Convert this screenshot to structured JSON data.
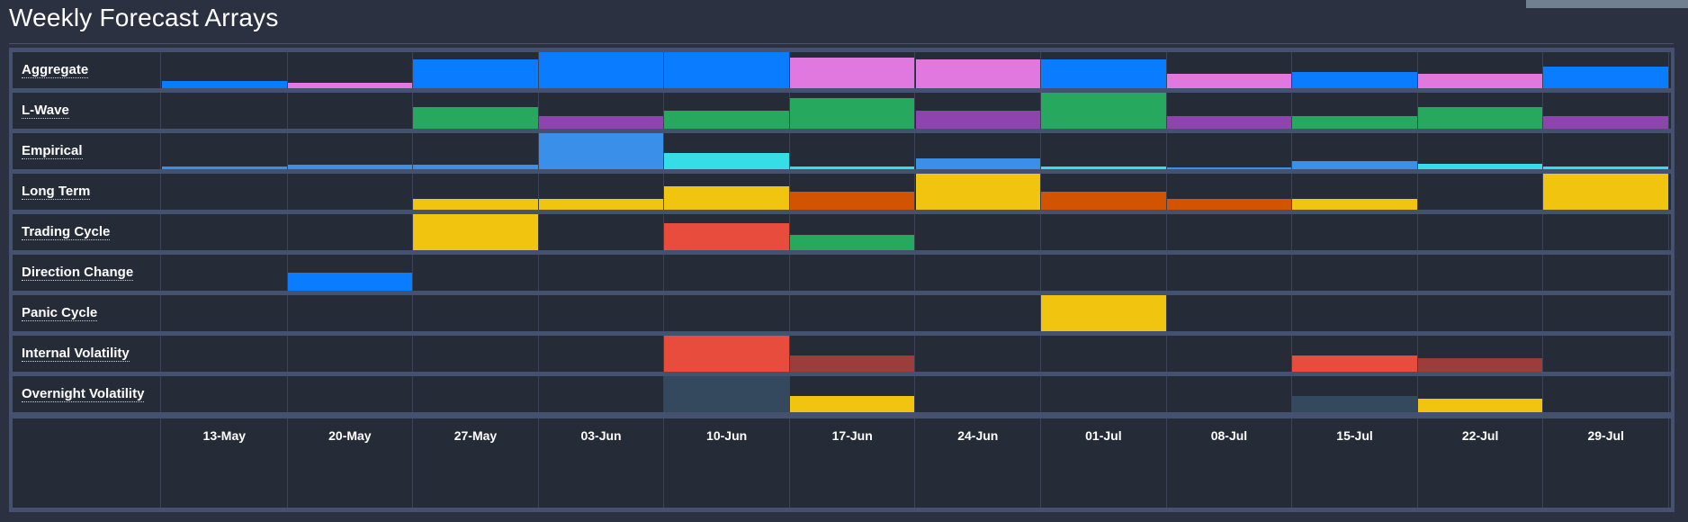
{
  "page": {
    "title": "Weekly Forecast Arrays"
  },
  "chart_data": {
    "type": "heatmap",
    "title": "Weekly Forecast Arrays",
    "categories": [
      "13-May",
      "20-May",
      "27-May",
      "03-Jun",
      "10-Jun",
      "17-Jun",
      "24-Jun",
      "01-Jul",
      "08-Jul",
      "15-Jul",
      "22-Jul",
      "29-Jul"
    ],
    "value_scale": [
      0,
      1
    ],
    "colors": {
      "blue": "#0a7cff",
      "pink": "#e078e0",
      "green": "#26a85e",
      "purple": "#8e44ad",
      "light_blue": "#3a8fe8",
      "cyan": "#35dde6",
      "yellow": "#f1c40f",
      "orange": "#d35400",
      "red": "#e74c3c",
      "dark_red": "#9b3d3a",
      "slate": "#34495e"
    },
    "series": [
      {
        "name": "Aggregate",
        "values": [
          0.2,
          0.15,
          0.8,
          1.0,
          1.0,
          0.85,
          0.8,
          0.8,
          0.4,
          0.45,
          0.4,
          0.6
        ],
        "colors": [
          "blue",
          "pink",
          "blue",
          "blue",
          "blue",
          "pink",
          "pink",
          "blue",
          "pink",
          "blue",
          "pink",
          "blue"
        ]
      },
      {
        "name": "L-Wave",
        "values": [
          0,
          0,
          0.6,
          0.35,
          0.5,
          0.85,
          0.5,
          1.0,
          0.35,
          0.35,
          0.6,
          0.35
        ],
        "colors": [
          "green",
          "green",
          "green",
          "purple",
          "green",
          "green",
          "purple",
          "green",
          "purple",
          "green",
          "green",
          "purple"
        ]
      },
      {
        "name": "Empirical",
        "values": [
          0.08,
          0.12,
          0.12,
          1.0,
          0.45,
          0.07,
          0.3,
          0.08,
          0.05,
          0.22,
          0.15,
          0.08
        ],
        "colors": [
          "light_blue",
          "light_blue",
          "light_blue",
          "light_blue",
          "cyan",
          "cyan",
          "light_blue",
          "cyan",
          "light_blue",
          "light_blue",
          "cyan",
          "cyan"
        ]
      },
      {
        "name": "Long Term",
        "values": [
          0,
          0,
          0.3,
          0.3,
          0.65,
          0.5,
          1.0,
          0.5,
          0.3,
          0.3,
          0,
          1.0
        ],
        "colors": [
          "yellow",
          "yellow",
          "yellow",
          "yellow",
          "yellow",
          "orange",
          "yellow",
          "orange",
          "orange",
          "yellow",
          "yellow",
          "yellow"
        ]
      },
      {
        "name": "Trading Cycle",
        "values": [
          0,
          0,
          1.0,
          0,
          0.75,
          0.42,
          0,
          0,
          0,
          0,
          0,
          0
        ],
        "colors": [
          "yellow",
          "yellow",
          "yellow",
          "yellow",
          "red",
          "green",
          "yellow",
          "yellow",
          "yellow",
          "yellow",
          "yellow",
          "yellow"
        ]
      },
      {
        "name": "Direction Change",
        "values": [
          0,
          0.5,
          0,
          0,
          0,
          0,
          0,
          0,
          0,
          0,
          0,
          0
        ],
        "colors": [
          "blue",
          "blue",
          "blue",
          "blue",
          "blue",
          "blue",
          "blue",
          "blue",
          "blue",
          "blue",
          "blue",
          "blue"
        ]
      },
      {
        "name": "Panic Cycle",
        "values": [
          0,
          0,
          0,
          0,
          0,
          0,
          0,
          1.0,
          0,
          0,
          0,
          0
        ],
        "colors": [
          "yellow",
          "yellow",
          "yellow",
          "yellow",
          "yellow",
          "yellow",
          "yellow",
          "yellow",
          "yellow",
          "yellow",
          "yellow",
          "yellow"
        ]
      },
      {
        "name": "Internal Volatility",
        "values": [
          0,
          0,
          0,
          0,
          1.0,
          0.45,
          0,
          0,
          0,
          0.45,
          0.38,
          0
        ],
        "colors": [
          "red",
          "red",
          "red",
          "red",
          "red",
          "dark_red",
          "red",
          "red",
          "red",
          "red",
          "dark_red",
          "red"
        ]
      },
      {
        "name": "Overnight Volatility",
        "values": [
          0,
          0,
          0,
          0,
          1.0,
          0.45,
          0,
          0,
          0,
          0.45,
          0.38,
          0
        ],
        "colors": [
          "slate",
          "slate",
          "slate",
          "slate",
          "slate",
          "yellow",
          "slate",
          "slate",
          "slate",
          "slate",
          "yellow",
          "slate"
        ]
      }
    ]
  }
}
